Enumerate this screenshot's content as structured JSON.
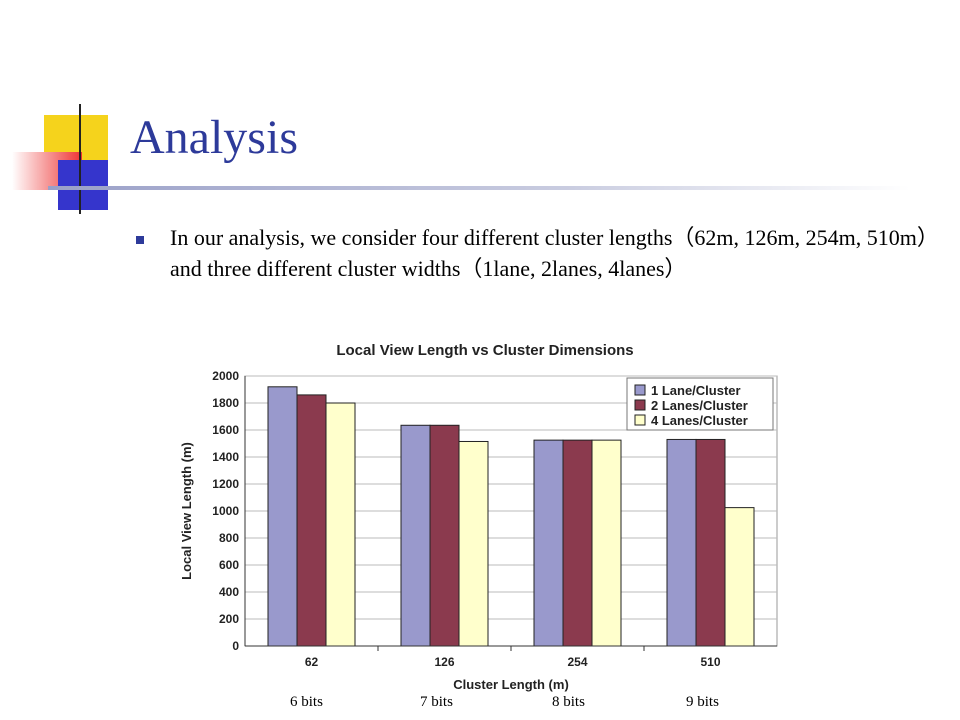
{
  "slide": {
    "title": "Analysis",
    "bullet_text": "In our analysis, we consider four different cluster lengths（62m, 126m, 254m, 510m）and three different cluster widths（1lane, 2lanes, 4lanes）",
    "bit_labels": [
      "6 bits",
      "7 bits",
      "8 bits",
      "9 bits"
    ]
  },
  "colors": {
    "title": "#2d3a9a",
    "series": [
      "#9999cc",
      "#8b3a4e",
      "#ffffcc"
    ]
  },
  "chart_data": {
    "type": "bar",
    "title": "Local View Length vs Cluster Dimensions",
    "xlabel": "Cluster Length (m)",
    "ylabel": "Local View Length (m)",
    "categories": [
      "62",
      "126",
      "254",
      "510"
    ],
    "ylim": [
      0,
      2000
    ],
    "yticks": [
      0,
      200,
      400,
      600,
      800,
      1000,
      1200,
      1400,
      1600,
      1800,
      2000
    ],
    "grid": true,
    "legend_position": "top-right",
    "series": [
      {
        "name": "1 Lane/Cluster",
        "values": [
          1920,
          1635,
          1525,
          1530
        ]
      },
      {
        "name": "2 Lanes/Cluster",
        "values": [
          1860,
          1635,
          1525,
          1530
        ]
      },
      {
        "name": "4 Lanes/Cluster",
        "values": [
          1800,
          1515,
          1525,
          1025
        ]
      }
    ]
  }
}
